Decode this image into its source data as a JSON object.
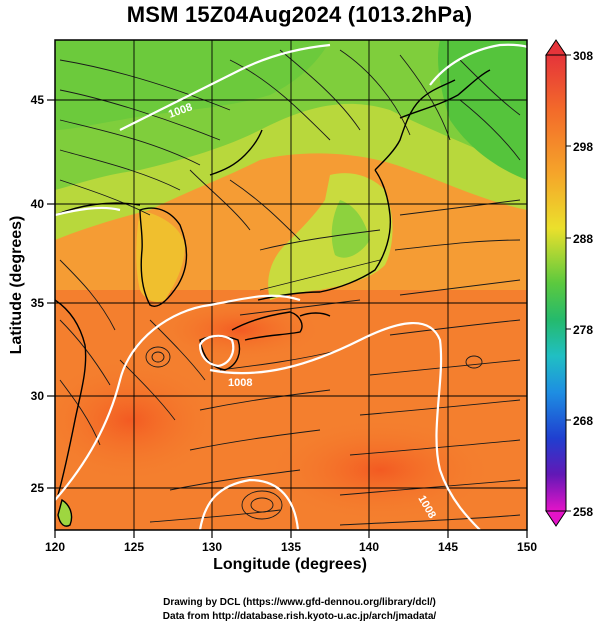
{
  "title": "MSM 15Z04Aug2024 (1013.2hPa)",
  "xlabel": "Longitude (degrees)",
  "ylabel": "Latitude  (degrees)",
  "credits": {
    "line1": "Drawing by DCL (https://www.gfd-dennou.org/library/dcl/)",
    "line2": "Data from http://database.rish.kyoto-u.ac.jp/arch/jmadata/"
  },
  "x_ticks": [
    "120",
    "125",
    "130",
    "135",
    "140",
    "145",
    "150"
  ],
  "y_ticks": [
    "25",
    "30",
    "35",
    "40",
    "45"
  ],
  "colorbar": {
    "ticks": [
      "308",
      "298",
      "288",
      "278",
      "268",
      "258"
    ],
    "colors": [
      "#e8353a",
      "#f3702a",
      "#f6a428",
      "#eede2a",
      "#8fd33a",
      "#27b94a",
      "#22c0a5",
      "#1e8fe0",
      "#2050d8",
      "#3a1cb8",
      "#8a1ab0",
      "#d815c8"
    ]
  },
  "contour_labels": [
    "1008",
    "1008",
    "1008"
  ],
  "chart_data": {
    "type": "map",
    "variable": "surface temperature (K) with streamlines and pressure contours",
    "xlim": [
      120,
      150
    ],
    "ylim": [
      23,
      48
    ],
    "colorbar_range": [
      258,
      308
    ]
  }
}
